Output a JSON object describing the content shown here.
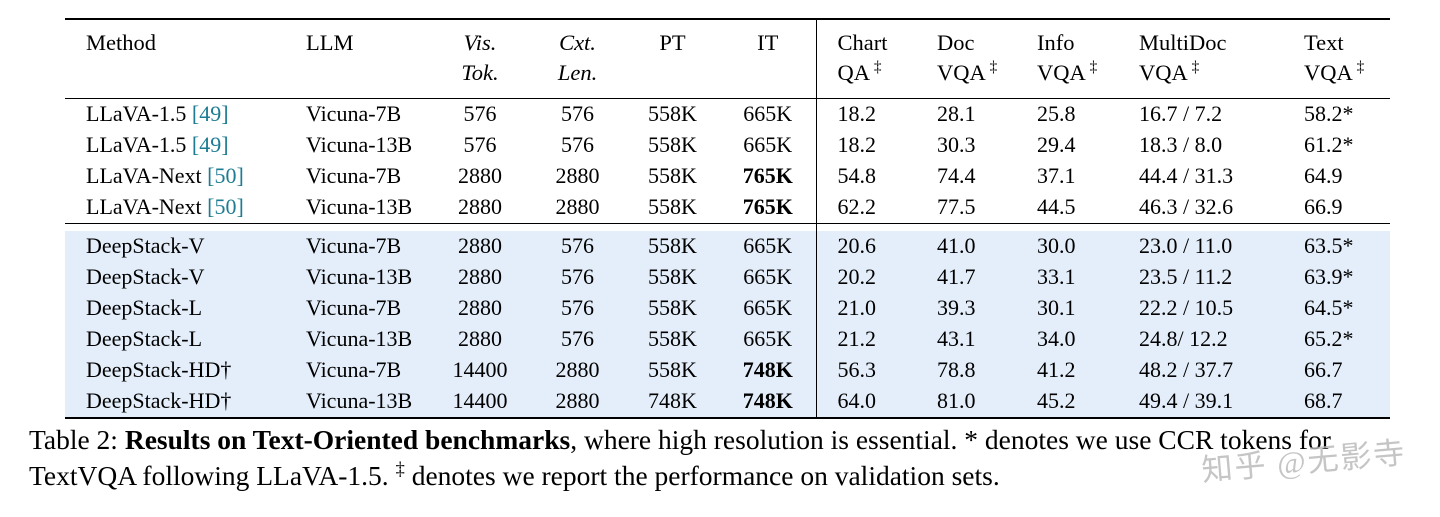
{
  "colors": {
    "highlight_row_bg": "#e4eefa",
    "citation_link": "#1d7c93",
    "rule": "#000000",
    "watermark": "#b6b6b6"
  },
  "table": {
    "columns": [
      {
        "id": "method",
        "lines": [
          "Method"
        ],
        "align": "left",
        "pad": true
      },
      {
        "id": "llm",
        "lines": [
          "LLM"
        ],
        "align": "left",
        "pad": true
      },
      {
        "id": "vis-tok",
        "lines": [
          "Vis.",
          "Tok."
        ],
        "italic": true,
        "align": "center"
      },
      {
        "id": "cxt-len",
        "lines": [
          "Cxt.",
          "Len."
        ],
        "italic": true,
        "align": "center"
      },
      {
        "id": "pt",
        "lines": [
          "PT"
        ],
        "align": "center"
      },
      {
        "id": "it",
        "lines": [
          "IT"
        ],
        "align": "center"
      },
      {
        "id": "chart-qa",
        "lines": [
          "Chart",
          "QA"
        ],
        "sup": "‡",
        "align": "left",
        "pad": true,
        "sep": true
      },
      {
        "id": "doc-vqa",
        "lines": [
          "Doc",
          "VQA"
        ],
        "sup": "‡",
        "align": "left",
        "pad": true
      },
      {
        "id": "info-vqa",
        "lines": [
          "Info",
          "VQA"
        ],
        "sup": "‡",
        "align": "left",
        "pad": true
      },
      {
        "id": "multidoc-vqa",
        "lines": [
          "MultiDoc",
          "VQA"
        ],
        "sup": "‡",
        "align": "left",
        "pad": true
      },
      {
        "id": "text-vqa",
        "lines": [
          "Text",
          "VQA"
        ],
        "sup": "‡",
        "align": "left",
        "pad": true
      }
    ],
    "groups": [
      {
        "highlight": false,
        "rows": [
          {
            "cells": [
              {
                "t": "LLaVA-1.5",
                "cite": "[49]"
              },
              "Vicuna-7B",
              "576",
              "576",
              "558K",
              "665K",
              "18.2",
              "28.1",
              "25.8",
              "16.7 / 7.2",
              "58.2*"
            ]
          },
          {
            "cells": [
              {
                "t": "LLaVA-1.5",
                "cite": "[49]"
              },
              "Vicuna-13B",
              "576",
              "576",
              "558K",
              "665K",
              "18.2",
              "30.3",
              "29.4",
              "18.3 / 8.0",
              "61.2*"
            ]
          },
          {
            "cells": [
              {
                "t": "LLaVA-Next",
                "cite": "[50]"
              },
              "Vicuna-7B",
              "2880",
              "2880",
              "558K",
              {
                "t": "765K",
                "b": true
              },
              "54.8",
              "74.4",
              "37.1",
              "44.4 / 31.3",
              "64.9"
            ]
          },
          {
            "cells": [
              {
                "t": "LLaVA-Next",
                "cite": "[50]"
              },
              "Vicuna-13B",
              "2880",
              "2880",
              "558K",
              {
                "t": "765K",
                "b": true
              },
              "62.2",
              "77.5",
              "44.5",
              "46.3 / 32.6",
              "66.9"
            ]
          }
        ]
      },
      {
        "highlight": true,
        "gap_before": true,
        "rows": [
          {
            "cells": [
              "DeepStack-V",
              "Vicuna-7B",
              "2880",
              "576",
              "558K",
              "665K",
              "20.6",
              "41.0",
              "30.0",
              "23.0 / 11.0",
              "63.5*"
            ]
          },
          {
            "cells": [
              "DeepStack-V",
              "Vicuna-13B",
              "2880",
              "576",
              "558K",
              "665K",
              "20.2",
              "41.7",
              "33.1",
              "23.5 / 11.2",
              "63.9*"
            ]
          },
          {
            "cells": [
              "DeepStack-L",
              "Vicuna-7B",
              "2880",
              "576",
              "558K",
              "665K",
              "21.0",
              "39.3",
              "30.1",
              "22.2 / 10.5",
              "64.5*"
            ]
          },
          {
            "cells": [
              "DeepStack-L",
              "Vicuna-13B",
              "2880",
              "576",
              "558K",
              "665K",
              "21.2",
              "43.1",
              "34.0",
              "24.8/ 12.2",
              "65.2*"
            ]
          },
          {
            "cells": [
              "DeepStack-HD†",
              "Vicuna-7B",
              "14400",
              "2880",
              "558K",
              {
                "t": "748K",
                "b": true
              },
              "56.3",
              "78.8",
              "41.2",
              "48.2 / 37.7",
              "66.7"
            ]
          },
          {
            "cells": [
              "DeepStack-HD†",
              "Vicuna-13B",
              "14400",
              "2880",
              "748K",
              {
                "t": "748K",
                "b": true
              },
              "64.0",
              "81.0",
              "45.2",
              "49.4 / 39.1",
              "68.7"
            ]
          }
        ]
      }
    ]
  },
  "caption": {
    "label": "Table 2: ",
    "title": "Results on Text-Oriented benchmarks",
    "after_title": ", where high resolution is essential. * denotes we use CCR tokens for TextVQA following LLaVA-1.5. ",
    "sup": "‡",
    "after_sup": " denotes we report the performance on validation sets."
  },
  "watermark": {
    "text": "知乎 @无影寺"
  }
}
